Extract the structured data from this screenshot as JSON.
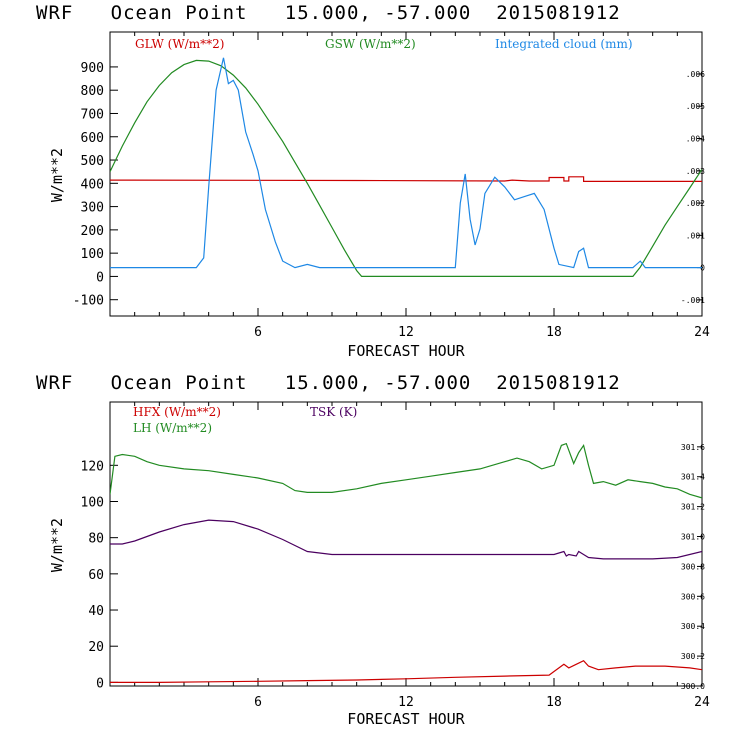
{
  "colors": {
    "red": "#cc0000",
    "green": "#228B22",
    "blue": "#1e88e5",
    "purple": "#4b0060",
    "axis": "#000000"
  },
  "chart_data": [
    {
      "type": "line",
      "title": "WRF   Ocean Point   15.000, -57.000  2015081912",
      "xlabel": "FORECAST HOUR",
      "ylabel": "W/m**2",
      "xlim": [
        0,
        24
      ],
      "ylim": [
        -170,
        1050
      ],
      "xticks": [
        "6",
        "12",
        "18",
        "24"
      ],
      "yticks": [
        "-100",
        "0",
        "100",
        "200",
        "300",
        "400",
        "500",
        "600",
        "700",
        "800",
        "900"
      ],
      "y2lim": [
        -0.0015,
        0.0073
      ],
      "y2ticks": [
        "-.001",
        "0",
        ".001",
        ".002",
        ".003",
        ".004",
        ".005",
        ".006"
      ],
      "legend": [
        "GLW (W/m**2)",
        "GSW (W/m**2)",
        "Integrated cloud (mm)"
      ],
      "series": [
        {
          "name": "GLW (W/m**2)",
          "axis": "left",
          "color": "red",
          "x": [
            0,
            10,
            16,
            16.3,
            16.6,
            17,
            17.8,
            17.8,
            18.4,
            18.4,
            18.6,
            18.6,
            19.2,
            19.2,
            24
          ],
          "y": [
            414,
            412,
            410,
            414,
            412,
            410,
            410,
            425,
            425,
            410,
            410,
            428,
            428,
            408,
            408
          ]
        },
        {
          "name": "GSW (W/m**2)",
          "axis": "left",
          "color": "green",
          "x": [
            0,
            0.5,
            1,
            1.5,
            2,
            2.5,
            3,
            3.5,
            4,
            4.5,
            5,
            5.5,
            6,
            6.5,
            7,
            7.5,
            8,
            8.5,
            9,
            9.5,
            10,
            10.2,
            21.2,
            21.5,
            22,
            22.5,
            23,
            23.5,
            24
          ],
          "y": [
            450,
            560,
            660,
            750,
            820,
            875,
            910,
            928,
            925,
            905,
            865,
            810,
            740,
            660,
            580,
            490,
            400,
            305,
            210,
            115,
            25,
            0,
            0,
            40,
            130,
            220,
            300,
            380,
            460
          ]
        },
        {
          "name": "Integrated cloud (mm)",
          "axis": "right",
          "color": "blue",
          "x": [
            0,
            3.5,
            3.8,
            4.0,
            4.3,
            4.6,
            4.8,
            5.0,
            5.2,
            5.5,
            5.8,
            6.0,
            6.3,
            6.7,
            7.0,
            7.5,
            8.0,
            8.5,
            9.0,
            14.0,
            14.2,
            14.4,
            14.6,
            14.8,
            15.0,
            15.2,
            15.6,
            16.0,
            16.4,
            16.8,
            17.2,
            17.6,
            18.0,
            18.2,
            18.8,
            19.0,
            19.2,
            19.4,
            21.2,
            21.5,
            21.7,
            24
          ],
          "y": [
            0,
            0,
            0.0003,
            0.0025,
            0.0055,
            0.0065,
            0.0057,
            0.0058,
            0.0055,
            0.0042,
            0.0035,
            0.003,
            0.0018,
            0.0008,
            0.0002,
            0,
            0.0001,
            0,
            0,
            0,
            0.002,
            0.0029,
            0.0015,
            0.0007,
            0.0012,
            0.0023,
            0.0028,
            0.0025,
            0.0021,
            0.0022,
            0.0023,
            0.0018,
            0.0006,
            0.0001,
            0,
            0.0005,
            0.0006,
            0,
            0,
            0.0002,
            0,
            0
          ]
        }
      ]
    },
    {
      "type": "line",
      "title": "WRF   Ocean Point   15.000, -57.000  2015081912",
      "xlabel": "FORECAST HOUR",
      "ylabel": "W/m**2",
      "xlim": [
        0,
        24
      ],
      "ylim": [
        -2,
        155
      ],
      "xticks": [
        "6",
        "12",
        "18",
        "24"
      ],
      "yticks": [
        "0",
        "20",
        "40",
        "60",
        "80",
        "100",
        "120"
      ],
      "y2lim": [
        300.0,
        301.9
      ],
      "y2ticks": [
        "300.0",
        "300.2",
        "300.4",
        "300.6",
        "300.8",
        "301.0",
        "301.2",
        "301.4",
        "301.6"
      ],
      "legend": [
        "HFX (W/m**2)",
        "LH  (W/m**2)",
        "TSK (K)"
      ],
      "series": [
        {
          "name": "HFX (W/m**2)",
          "axis": "left",
          "color": "red",
          "x": [
            0,
            2,
            4,
            6,
            8,
            10,
            12,
            14,
            16,
            17.8,
            18.0,
            18.4,
            18.6,
            18.9,
            19.2,
            19.4,
            19.8,
            20.5,
            21.3,
            22.5,
            23.5,
            24
          ],
          "y": [
            0,
            0,
            0.3,
            0.6,
            1,
            1.3,
            2,
            2.8,
            3.5,
            4,
            6,
            10,
            8,
            10,
            12,
            9,
            7,
            8,
            9,
            9,
            8,
            7
          ]
        },
        {
          "name": "LH  (W/m**2)",
          "axis": "left",
          "color": "green",
          "x": [
            0,
            0.2,
            0.5,
            1,
            1.5,
            2,
            3,
            4,
            5,
            6,
            7,
            7.5,
            8,
            9,
            10,
            11,
            12,
            13,
            14,
            15,
            16,
            16.5,
            17,
            17.5,
            18,
            18.3,
            18.5,
            18.8,
            19.0,
            19.2,
            19.4,
            19.6,
            20.0,
            20.5,
            21.0,
            21.5,
            22,
            22.5,
            23,
            23.5,
            24
          ],
          "y": [
            104,
            125,
            126,
            125,
            122,
            120,
            118,
            117,
            115,
            113,
            110,
            106,
            105,
            105,
            107,
            110,
            112,
            114,
            116,
            118,
            122,
            124,
            122,
            118,
            120,
            131,
            132,
            121,
            127,
            131,
            120,
            110,
            111,
            109,
            112,
            111,
            110,
            108,
            107,
            104,
            102
          ]
        },
        {
          "name": "TSK (K)",
          "axis": "right",
          "color": "purple",
          "x": [
            0,
            0.5,
            1,
            2,
            3,
            4,
            5,
            6,
            7,
            8,
            9,
            10,
            12,
            14,
            16,
            18,
            18.4,
            18.5,
            18.6,
            18.9,
            19.0,
            19.2,
            19.4,
            20,
            22,
            23,
            24
          ],
          "y": [
            300.95,
            300.95,
            300.97,
            301.03,
            301.08,
            301.11,
            301.1,
            301.05,
            300.98,
            300.9,
            300.88,
            300.88,
            300.88,
            300.88,
            300.88,
            300.88,
            300.9,
            300.87,
            300.88,
            300.87,
            300.9,
            300.88,
            300.86,
            300.85,
            300.85,
            300.86,
            300.9
          ]
        }
      ]
    }
  ]
}
